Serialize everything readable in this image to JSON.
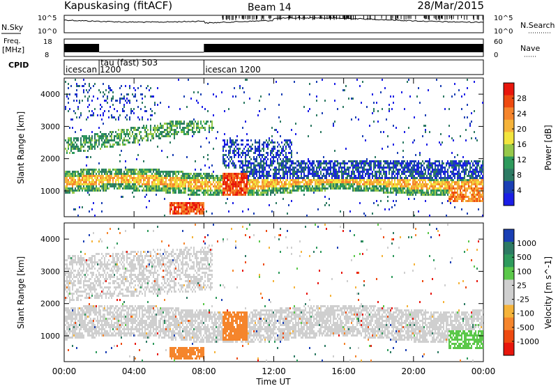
{
  "header": {
    "station": "Kapuskasing (fitACF)",
    "beam": "Beam 14",
    "date": "28/Mar/2015"
  },
  "top_panels": {
    "nsky_label": "N.Sky",
    "nsearch_label": "N.Search",
    "nsky_ticks": [
      "10^5",
      "10^0"
    ],
    "nsearch_ticks": [
      "10^5",
      "10^0"
    ],
    "freq_label_1": "Freq.",
    "freq_label_2": "[MHz]",
    "freq_ticks": [
      "18",
      "8"
    ],
    "nave_label": "Nave",
    "nave_ticks": [
      "60",
      "0"
    ],
    "cpid_label": "CPID",
    "cpid_segments": [
      {
        "label": "icescan 1200",
        "start_hour": 0.0,
        "end_hour": 2.0
      },
      {
        "label": "tau (fast) 503",
        "start_hour": 2.0,
        "end_hour": 8.0
      },
      {
        "label": "icescan 1200",
        "start_hour": 8.0,
        "end_hour": 24.0
      }
    ]
  },
  "chart_data": [
    {
      "type": "heatmap",
      "name": "power",
      "xlabel": "",
      "ylabel": "Slant Range [km]",
      "xlim": [
        0,
        24
      ],
      "ylim": [
        200,
        4500
      ],
      "yticks": [
        1000,
        2000,
        3000,
        4000
      ],
      "colorbar_label": "Power [dB]",
      "colorbar_ticks": [
        "28",
        "24",
        "20",
        "16",
        "12",
        "8",
        "4"
      ],
      "colorbar_colors": [
        "#e8160c",
        "#ee4a10",
        "#f5852c",
        "#f5b33a",
        "#f2e53e",
        "#96c84a",
        "#2e9a5c",
        "#2d7a63",
        "#1a3fb4",
        "#1b1ee6"
      ],
      "features": [
        {
          "desc": "band",
          "hours": [
            0,
            24
          ],
          "range_km": [
            900,
            1600
          ],
          "level_db": 14
        },
        {
          "desc": "upper band",
          "hours": [
            0,
            8
          ],
          "range_km": [
            2000,
            3200
          ],
          "level_db": 10
        },
        {
          "desc": "arc",
          "hours": [
            6,
            8
          ],
          "range_km": [
            300,
            600
          ],
          "level_db": 26
        },
        {
          "desc": "patch",
          "hours": [
            9,
            10.5
          ],
          "range_km": [
            900,
            1600
          ],
          "level_db": 24
        }
      ]
    },
    {
      "type": "heatmap",
      "name": "velocity",
      "xlabel": "Time UT",
      "ylabel": "Slant Range [km]",
      "xlim": [
        0,
        24
      ],
      "ylim": [
        200,
        4500
      ],
      "xticks": [
        "00:00",
        "04:00",
        "08:00",
        "12:00",
        "16:00",
        "20:00",
        "00:00"
      ],
      "yticks": [
        1000,
        2000,
        3000,
        4000
      ],
      "colorbar_label": "Velocity [m s^-1]",
      "colorbar_ticks": [
        "1000",
        "500",
        "100",
        "25",
        "-25",
        "-100",
        "-500",
        "-1000"
      ],
      "colorbar_colors": [
        "#1a3fb4",
        "#2d7a63",
        "#2e9a5c",
        "#5bc84a",
        "#cfcfcf",
        "#cfcfcf",
        "#f5b33a",
        "#f5852c",
        "#ee4a10",
        "#e8160c"
      ],
      "features": [
        {
          "desc": "ground scatter band",
          "hours": [
            0,
            24
          ],
          "range_km": [
            900,
            2000
          ],
          "velocity_ms": 0
        },
        {
          "desc": "upper ground scatter",
          "hours": [
            0,
            8
          ],
          "range_km": [
            2200,
            4200
          ],
          "velocity_ms": 0
        },
        {
          "desc": "arc",
          "hours": [
            6,
            8
          ],
          "range_km": [
            300,
            600
          ],
          "velocity_ms": -300
        },
        {
          "desc": "patch",
          "hours": [
            9,
            10.5
          ],
          "range_km": [
            900,
            1800
          ],
          "velocity_ms": -300
        }
      ]
    }
  ]
}
